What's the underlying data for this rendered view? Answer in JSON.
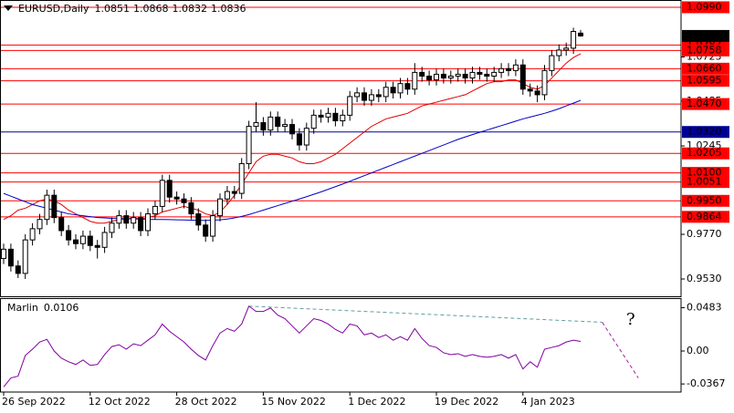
{
  "chart_data": [
    {
      "type": "candlestick",
      "title": "EURUSD,Daily",
      "categories": [
        "26 Sep 2022",
        null,
        null,
        null,
        null,
        null,
        null,
        null,
        null,
        null,
        null,
        null,
        "12 Oct 2022",
        null,
        null,
        null,
        null,
        null,
        null,
        null,
        null,
        null,
        null,
        null,
        "28 Oct 2022",
        null,
        null,
        null,
        null,
        null,
        null,
        null,
        null,
        null,
        null,
        null,
        "15 Nov 2022",
        null,
        null,
        null,
        null,
        null,
        null,
        null,
        null,
        null,
        null,
        null,
        "1 Dec 2022",
        null,
        null,
        null,
        null,
        null,
        null,
        null,
        null,
        null,
        null,
        null,
        "19 Dec 2022",
        null,
        null,
        null,
        null,
        null,
        null,
        null,
        null,
        null,
        null,
        null,
        "4 Jan 2023",
        null,
        null,
        null,
        null,
        null,
        null,
        null,
        null
      ],
      "open": [
        0.964,
        0.969,
        0.96,
        0.956,
        0.974,
        0.98,
        0.985,
        0.998,
        0.986,
        0.979,
        0.974,
        0.972,
        0.976,
        0.971,
        0.97,
        0.978,
        0.983,
        0.987,
        0.983,
        0.986,
        0.979,
        0.988,
        0.992,
        1.006,
        0.997,
        0.996,
        0.994,
        0.988,
        0.982,
        0.976,
        0.987,
        0.996,
        1.0,
        0.999,
        1.015,
        1.035,
        1.037,
        1.033,
        1.04,
        1.035,
        1.036,
        1.031,
        1.025,
        1.034,
        1.041,
        1.04,
        1.042,
        1.038,
        1.041,
        1.051,
        1.053,
        1.049,
        1.052,
        1.051,
        1.056,
        1.053,
        1.058,
        1.055,
        1.064,
        1.062,
        1.06,
        1.063,
        1.061,
        1.062,
        1.063,
        1.061,
        1.064,
        1.063,
        1.062,
        1.064,
        1.066,
        1.065,
        1.068,
        1.055,
        1.054,
        1.052,
        1.065,
        1.073,
        1.076,
        1.077,
        1.0851
      ],
      "high": [
        0.972,
        0.972,
        0.963,
        0.977,
        0.983,
        0.988,
        1.001,
        1.001,
        0.989,
        0.982,
        0.977,
        0.979,
        0.979,
        0.974,
        0.981,
        0.986,
        0.99,
        0.99,
        0.989,
        0.989,
        0.991,
        0.995,
        1.009,
        1.009,
        1.0,
        0.999,
        0.997,
        0.991,
        0.985,
        0.99,
        0.999,
        1.003,
        1.003,
        1.018,
        1.038,
        1.048,
        1.04,
        1.043,
        1.043,
        1.039,
        1.039,
        1.034,
        1.037,
        1.044,
        1.044,
        1.045,
        1.045,
        1.044,
        1.054,
        1.056,
        1.056,
        1.055,
        1.055,
        1.059,
        1.059,
        1.061,
        1.061,
        1.069,
        1.067,
        1.065,
        1.066,
        1.066,
        1.065,
        1.066,
        1.066,
        1.067,
        1.067,
        1.066,
        1.067,
        1.069,
        1.069,
        1.071,
        1.071,
        1.058,
        1.057,
        1.068,
        1.076,
        1.079,
        1.08,
        1.088,
        1.0868
      ],
      "low": [
        0.961,
        0.957,
        0.9535,
        0.953,
        0.971,
        0.977,
        0.982,
        0.983,
        0.976,
        0.971,
        0.969,
        0.969,
        0.968,
        0.964,
        0.967,
        0.975,
        0.98,
        0.98,
        0.98,
        0.976,
        0.976,
        0.985,
        0.989,
        0.994,
        0.993,
        0.991,
        0.985,
        0.979,
        0.973,
        0.973,
        0.984,
        0.993,
        0.996,
        0.996,
        1.012,
        1.032,
        1.03,
        1.03,
        1.032,
        1.032,
        1.028,
        1.022,
        1.022,
        1.031,
        1.037,
        1.037,
        1.035,
        1.035,
        1.038,
        1.048,
        1.046,
        1.046,
        1.048,
        1.048,
        1.05,
        1.05,
        1.052,
        1.052,
        1.059,
        1.057,
        1.057,
        1.058,
        1.058,
        1.059,
        1.058,
        1.058,
        1.06,
        1.059,
        1.059,
        1.061,
        1.062,
        1.062,
        1.052,
        1.051,
        1.048,
        1.049,
        1.062,
        1.07,
        1.073,
        1.074,
        1.0832
      ],
      "close": [
        0.969,
        0.96,
        0.956,
        0.974,
        0.98,
        0.985,
        0.998,
        0.986,
        0.979,
        0.974,
        0.972,
        0.976,
        0.971,
        0.97,
        0.978,
        0.983,
        0.987,
        0.983,
        0.986,
        0.979,
        0.988,
        0.992,
        1.006,
        0.997,
        0.996,
        0.994,
        0.988,
        0.982,
        0.976,
        0.987,
        0.996,
        1.0,
        0.999,
        1.015,
        1.035,
        1.037,
        1.033,
        1.04,
        1.035,
        1.036,
        1.031,
        1.025,
        1.034,
        1.041,
        1.04,
        1.042,
        1.038,
        1.041,
        1.051,
        1.053,
        1.049,
        1.052,
        1.051,
        1.056,
        1.053,
        1.058,
        1.055,
        1.064,
        1.062,
        1.06,
        1.063,
        1.061,
        1.062,
        1.063,
        1.061,
        1.064,
        1.063,
        1.062,
        1.064,
        1.066,
        1.065,
        1.068,
        1.055,
        1.054,
        1.052,
        1.065,
        1.073,
        1.076,
        1.077,
        1.086,
        1.0836
      ],
      "series": [
        {
          "color": "#e00000",
          "values": [
            0.985,
            0.987,
            0.99,
            0.991,
            0.993,
            0.995,
            0.996,
            0.995,
            0.993,
            0.99,
            0.988,
            0.986,
            0.984,
            0.983,
            0.983,
            0.984,
            0.985,
            0.985,
            0.986,
            0.985,
            0.986,
            0.987,
            0.989,
            0.99,
            0.991,
            0.992,
            0.991,
            0.99,
            0.988,
            0.987,
            0.989,
            0.993,
            0.998,
            1.004,
            1.01,
            1.016,
            1.019,
            1.02,
            1.02,
            1.019,
            1.018,
            1.016,
            1.015,
            1.015,
            1.016,
            1.018,
            1.02,
            1.023,
            1.026,
            1.029,
            1.032,
            1.035,
            1.037,
            1.039,
            1.04,
            1.041,
            1.042,
            1.044,
            1.046,
            1.047,
            1.048,
            1.049,
            1.05,
            1.051,
            1.052,
            1.054,
            1.056,
            1.058,
            1.059,
            1.059,
            1.06,
            1.06,
            1.058,
            1.056,
            1.055,
            1.057,
            1.061,
            1.065,
            1.069,
            1.072,
            1.074
          ]
        },
        {
          "color": "#0000c8",
          "values": [
            0.999,
            0.9975,
            0.996,
            0.9945,
            0.993,
            0.992,
            0.991,
            0.99,
            0.989,
            0.988,
            0.9875,
            0.987,
            0.9865,
            0.986,
            0.9858,
            0.9856,
            0.9855,
            0.9854,
            0.9853,
            0.9852,
            0.9851,
            0.985,
            0.985,
            0.9849,
            0.9848,
            0.9847,
            0.9846,
            0.9845,
            0.9845,
            0.9846,
            0.9848,
            0.9852,
            0.9858,
            0.9866,
            0.9876,
            0.9888,
            0.99,
            0.9912,
            0.9924,
            0.9936,
            0.9948,
            0.996,
            0.9972,
            0.9985,
            0.9998,
            1.0012,
            1.0026,
            1.004,
            1.0055,
            1.007,
            1.0085,
            1.01,
            1.0115,
            1.013,
            1.0145,
            1.016,
            1.0175,
            1.019,
            1.0205,
            1.022,
            1.0235,
            1.025,
            1.0265,
            1.028,
            1.0293,
            1.0306,
            1.0318,
            1.033,
            1.0342,
            1.0354,
            1.0366,
            1.0378,
            1.039,
            1.04,
            1.041,
            1.042,
            1.0432,
            1.0445,
            1.046,
            1.0475,
            1.049
          ]
        }
      ],
      "levels": [
        {
          "value": 1.099,
          "label": "1.0990",
          "color": "#ff0000"
        },
        {
          "value": 1.0787,
          "color": "#ff0000"
        },
        {
          "value": 1.0758,
          "color": "#ff0000"
        },
        {
          "value": 1.066,
          "label": "1.0660",
          "color": "#ff0000"
        },
        {
          "value": 1.0595,
          "color": "#ff0000"
        },
        {
          "value": 1.047,
          "label": "1.0470",
          "color": "#ff0000"
        },
        {
          "value": 1.032,
          "label": "1.0320",
          "color": "#000096"
        },
        {
          "value": 1.0205,
          "color": "#ff0000"
        },
        {
          "value": 1.01,
          "label": "1.0100",
          "color": "#ff0000"
        },
        {
          "value": 1.0051,
          "color": "#ff0000"
        },
        {
          "value": 0.995,
          "label": "0.9950",
          "color": "#ff0000"
        },
        {
          "value": 0.9864,
          "color": "#ff0000"
        }
      ],
      "ylim": [
        0.9437,
        1.1029
      ],
      "yticks": [
        1.0723,
        1.0485,
        1.0245,
        {
          "value": 0.977,
          "label": "0.9770"
        },
        {
          "value": 0.953,
          "label": "0.9530"
        }
      ]
    },
    {
      "type": "line",
      "series": [
        {
          "name": "Marlin",
          "color": "#8000a0",
          "values": [
            -0.04,
            -0.03,
            -0.028,
            -0.005,
            0.002,
            0.01,
            0.013,
            0.0,
            -0.008,
            -0.012,
            -0.015,
            -0.01,
            -0.016,
            -0.015,
            -0.004,
            0.005,
            0.007,
            0.002,
            0.008,
            0.006,
            0.012,
            0.018,
            0.03,
            0.022,
            0.016,
            0.01,
            0.002,
            -0.005,
            -0.01,
            0.006,
            0.02,
            0.025,
            0.022,
            0.03,
            0.05,
            0.044,
            0.044,
            0.048,
            0.04,
            0.036,
            0.028,
            0.02,
            0.028,
            0.036,
            0.034,
            0.03,
            0.024,
            0.02,
            0.03,
            0.028,
            0.018,
            0.02,
            0.015,
            0.018,
            0.012,
            0.016,
            0.012,
            0.025,
            0.014,
            0.006,
            0.004,
            -0.002,
            -0.004,
            -0.003,
            -0.006,
            -0.004,
            -0.006,
            -0.007,
            -0.006,
            -0.004,
            -0.008,
            -0.004,
            -0.02,
            -0.012,
            -0.018,
            0.002,
            0.004,
            0.006,
            0.01,
            0.012,
            0.0106
          ]
        }
      ],
      "lines": [
        {
          "color": "#5f9ea0",
          "dash": true,
          "x": [
            34,
            83
          ],
          "values": [
            0.05,
            0.032
          ]
        },
        {
          "color": "#a020a0",
          "dash": true,
          "x": [
            83,
            88
          ],
          "values": [
            0.032,
            -0.03
          ]
        }
      ],
      "annotations": [
        {
          "text": "?",
          "color": "#e00000"
        }
      ],
      "ylim": [
        -0.0457,
        0.0584
      ],
      "yticks": [
        0.0483,
        {
          "value": 0,
          "label": "0.00"
        },
        -0.0367
      ]
    }
  ]
}
